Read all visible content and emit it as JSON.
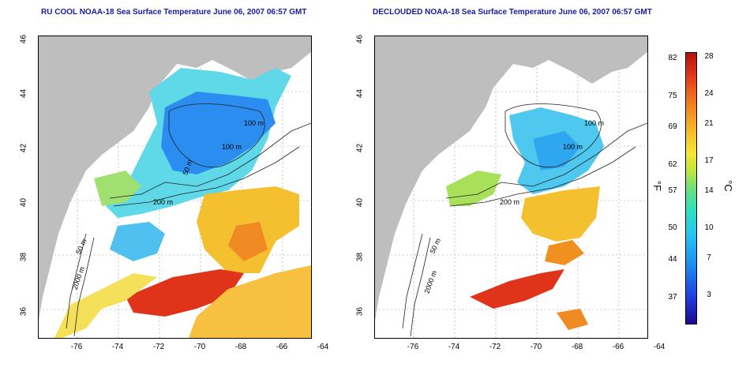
{
  "left_panel": {
    "title": "RU COOL NOAA-18 Sea Surface Temperature June 06, 2007 06:57 GMT",
    "contour_labels": [
      "100 m",
      "100 m",
      "50 m",
      "200 m",
      "50 m",
      "2000 m"
    ]
  },
  "right_panel": {
    "title": "DECLOUDED NOAA-18 Sea Surface Temperature June 06, 2007 06:57 GMT",
    "contour_labels": [
      "100 m",
      "100 m",
      "200 m",
      "50 m",
      "2000 m"
    ]
  },
  "axes": {
    "y_ticks": [
      "46",
      "44",
      "42",
      "40",
      "38",
      "36"
    ],
    "x_ticks": [
      "-76",
      "-74",
      "-72",
      "-70",
      "-68",
      "-66",
      "-64"
    ]
  },
  "colorbar": {
    "fahrenheit_labels": [
      "82",
      "75",
      "69",
      "62",
      "57",
      "50",
      "44",
      "37"
    ],
    "celsius_labels": [
      "28",
      "24",
      "21",
      "17",
      "14",
      "10",
      "7",
      "3"
    ],
    "fahrenheit_unit": "°F",
    "celsius_unit": "°C"
  },
  "colors": {
    "land": "#bebebe",
    "warm": "#e0341a",
    "cool": "#27a6f0",
    "title": "#1a1aa0"
  }
}
